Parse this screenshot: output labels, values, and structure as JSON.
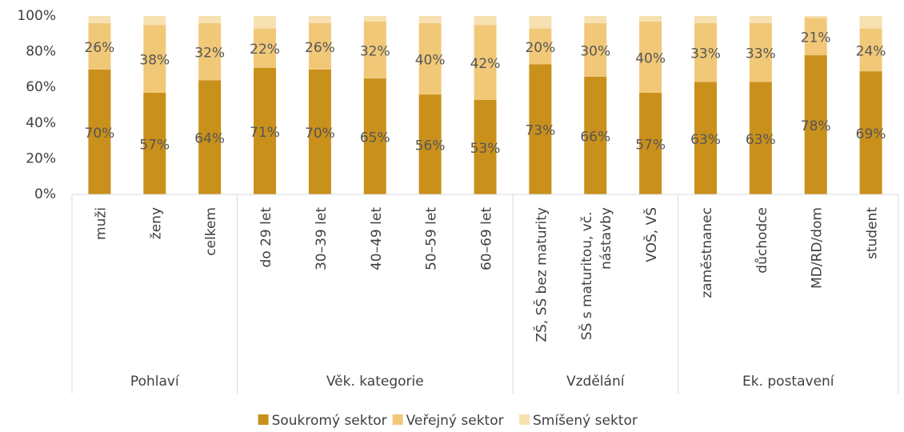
{
  "chart_data": {
    "type": "stacked_bar",
    "groups": [
      {
        "name": "Pohlaví",
        "categories": [
          "muži",
          "ženy",
          "celkem"
        ]
      },
      {
        "name": "Věk. kategorie",
        "categories": [
          "do 29 let",
          "30–39 let",
          "40–49 let",
          "50–59 let",
          "60–69 let"
        ]
      },
      {
        "name": "Vzdělání",
        "categories": [
          "ZŠ, SŠ bez maturity",
          "SŠ s maturitou, vč. nástavby",
          "VOŠ, VŠ"
        ]
      },
      {
        "name": "Ek. postavení",
        "categories": [
          "zaměstnanec",
          "důchodce",
          "MD/RD/dom",
          "student"
        ]
      }
    ],
    "series": [
      {
        "name": "Soukromý sektor",
        "color": "#c9901c",
        "values": [
          70,
          57,
          64,
          71,
          70,
          65,
          56,
          53,
          73,
          66,
          57,
          63,
          63,
          78,
          69
        ],
        "value_labels": [
          "70%",
          "57%",
          "64%",
          "71%",
          "70%",
          "65%",
          "56%",
          "53%",
          "73%",
          "66%",
          "57%",
          "63%",
          "63%",
          "78%",
          "69%"
        ]
      },
      {
        "name": "Veřejný sektor",
        "color": "#f1c878",
        "values": [
          26,
          38,
          32,
          22,
          26,
          32,
          40,
          42,
          20,
          30,
          40,
          33,
          33,
          21,
          24
        ],
        "value_labels": [
          "26%",
          "38%",
          "32%",
          "22%",
          "26%",
          "32%",
          "40%",
          "42%",
          "20%",
          "30%",
          "40%",
          "33%",
          "33%",
          "21%",
          "24%"
        ]
      },
      {
        "name": "Smíšený sektor",
        "color": "#f7e1b2",
        "values": [
          4,
          5,
          4,
          7,
          4,
          3,
          4,
          5,
          7,
          4,
          3,
          4,
          4,
          1,
          7
        ]
      }
    ],
    "ylim": [
      0,
      100
    ],
    "yticks": [
      {
        "value": 0,
        "label": "0%"
      },
      {
        "value": 20,
        "label": "20%"
      },
      {
        "value": 40,
        "label": "40%"
      },
      {
        "value": 60,
        "label": "60%"
      },
      {
        "value": 80,
        "label": "80%"
      },
      {
        "value": 100,
        "label": "100%"
      }
    ],
    "grid": false
  }
}
